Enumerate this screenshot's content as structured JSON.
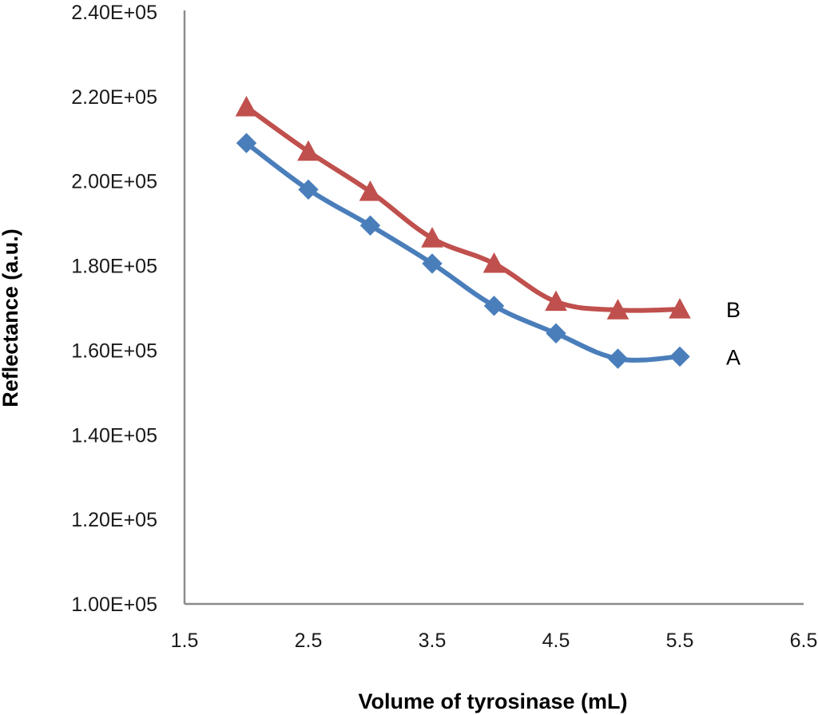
{
  "chart_data": {
    "type": "line",
    "title": "",
    "xlabel": "Volume of tyrosinase (mL)",
    "ylabel": "Reflectance (a.u.)",
    "xlim": [
      1.5,
      6.5
    ],
    "ylim": [
      100000,
      240000
    ],
    "x_ticks": [
      1.5,
      2.5,
      3.5,
      4.5,
      5.5,
      6.5
    ],
    "x_tick_labels": [
      "1.5",
      "2.5",
      "3.5",
      "4.5",
      "5.5",
      "6.5"
    ],
    "y_ticks": [
      100000,
      120000,
      140000,
      160000,
      180000,
      200000,
      220000,
      240000
    ],
    "y_tick_labels": [
      "1.00E+05",
      "1.20E+05",
      "1.40E+05",
      "1.60E+05",
      "1.80E+05",
      "2.00E+05",
      "2.20E+05",
      "2.40E+05"
    ],
    "grid": false,
    "legend": "none",
    "x": [
      2.0,
      2.5,
      3.0,
      3.5,
      4.0,
      4.5,
      5.0,
      5.5
    ],
    "series": [
      {
        "name": "A",
        "label": "A",
        "marker": "diamond",
        "color": "#4a7ebb",
        "values": [
          209000,
          198000,
          189500,
          180500,
          170500,
          164000,
          158000,
          158500
        ]
      },
      {
        "name": "B",
        "label": "B",
        "marker": "triangle",
        "color": "#c0504d",
        "values": [
          217500,
          207000,
          197500,
          186500,
          180500,
          171500,
          169500,
          169700
        ]
      }
    ]
  }
}
